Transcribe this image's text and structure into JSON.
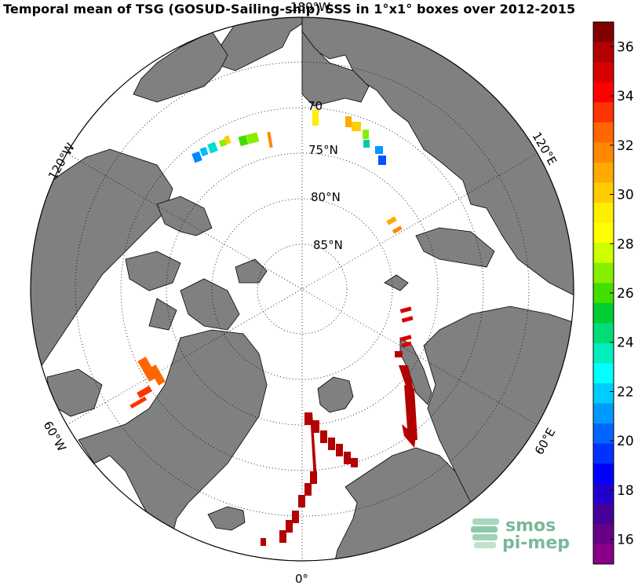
{
  "title": "Temporal mean of TSG (GOSUD-Sailing-ship) SSS in 1°x1° boxes over 2012-2015",
  "lat_labels": [
    "70",
    "75°N",
    "80°N",
    "85°N"
  ],
  "lon_labels": {
    "top": "180°W",
    "bottom": "0°",
    "upper_left": "120°W",
    "upper_right": "120°E",
    "lower_left": "60°W",
    "lower_right": "60°E"
  },
  "colorbar": {
    "ticks": [
      "36",
      "34",
      "32",
      "30",
      "28",
      "26",
      "24",
      "22",
      "20",
      "18",
      "16"
    ],
    "range": [
      15,
      37
    ],
    "colors": [
      "#800000",
      "#b30000",
      "#d90000",
      "#ff0000",
      "#ff3300",
      "#ff6600",
      "#ff8800",
      "#ffaa00",
      "#ffcc00",
      "#ffee00",
      "#ffff00",
      "#ccff00",
      "#88ee00",
      "#44dd00",
      "#00cc33",
      "#00dd77",
      "#00eebb",
      "#00ffff",
      "#00ccff",
      "#0099ff",
      "#0066ff",
      "#0033ff",
      "#0000ff",
      "#2200cc",
      "#440099",
      "#660088",
      "#880088"
    ]
  },
  "logo": {
    "line1": "smos",
    "line2": "pi-mep"
  },
  "colors": {
    "land": "#808080",
    "ocean": "#ffffff",
    "coast": "#000000"
  }
}
